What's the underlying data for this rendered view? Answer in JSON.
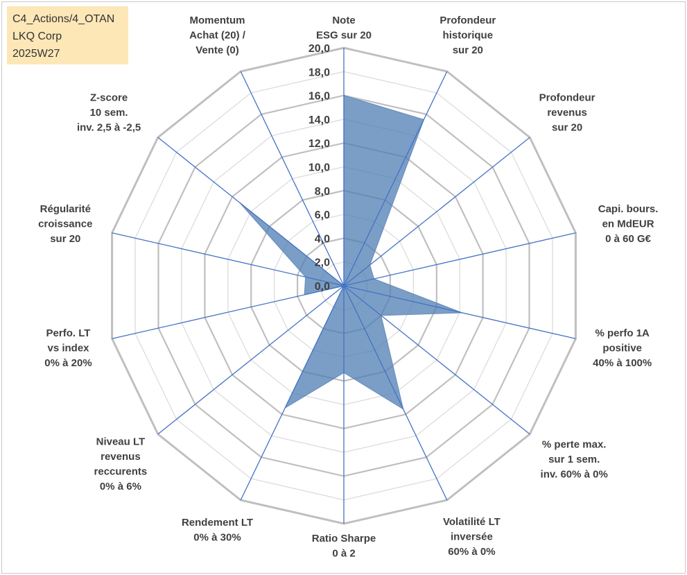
{
  "info_box": {
    "line1": "C4_Actions/4_OTAN",
    "line2": "LKQ Corp",
    "line3": "2025W27"
  },
  "chart_data": {
    "type": "radar",
    "rmin": 0,
    "rmax": 20,
    "tick_step": 2,
    "ticks": [
      "0,0",
      "2,0",
      "4,0",
      "6,0",
      "8,0",
      "10,0",
      "12,0",
      "14,0",
      "16,0",
      "18,0",
      "20,0"
    ],
    "grid": true,
    "colors": {
      "fill": "#4f7db3",
      "fill_opacity": 0.75,
      "spoke": "#4472c4",
      "outer_ring": "#bfbfbf",
      "inner_ring": "#d9d9d9"
    },
    "axes": [
      {
        "label": [
          "Note",
          "ESG sur 20"
        ],
        "value": 16.0
      },
      {
        "label": [
          "Profondeur",
          "historique",
          "sur 20"
        ],
        "value": 15.5
      },
      {
        "label": [
          "Profondeur",
          "revenus",
          "sur 20"
        ],
        "value": 2.8
      },
      {
        "label": [
          "Capi. bours.",
          "en MdEUR",
          "0 à 60 G€"
        ],
        "value": 2.6
      },
      {
        "label": [
          "% perfo 1A",
          "positive",
          "40% à 100%"
        ],
        "value": 10.2
      },
      {
        "label": [
          "% perte max.",
          "sur 1 sem.",
          "inv. 60% à 0%"
        ],
        "value": 4.0
      },
      {
        "label": [
          "Volatilité LT",
          "inversée",
          "60% à 0%"
        ],
        "value": 11.5
      },
      {
        "label": [
          "Ratio Sharpe",
          "0 à 2"
        ],
        "value": 7.3
      },
      {
        "label": [
          "Rendement LT",
          "0% à 30%"
        ],
        "value": 11.4
      },
      {
        "label": [
          "Niveau LT",
          "revenus",
          "reccurents",
          "0% à 6%"
        ],
        "value": 0.0
      },
      {
        "label": [
          "Perfo. LT",
          "vs index",
          "0% à 20%"
        ],
        "value": 3.4
      },
      {
        "label": [
          "Régularité",
          "croissance",
          "sur 20"
        ],
        "value": 3.3
      },
      {
        "label": [
          "Z-score",
          "10 sem.",
          "inv. 2,5 à -2,5"
        ],
        "value": 11.2
      },
      {
        "label": [
          "Momentum",
          "Achat (20) /",
          "Vente (0)"
        ],
        "value": 0.0
      }
    ]
  }
}
